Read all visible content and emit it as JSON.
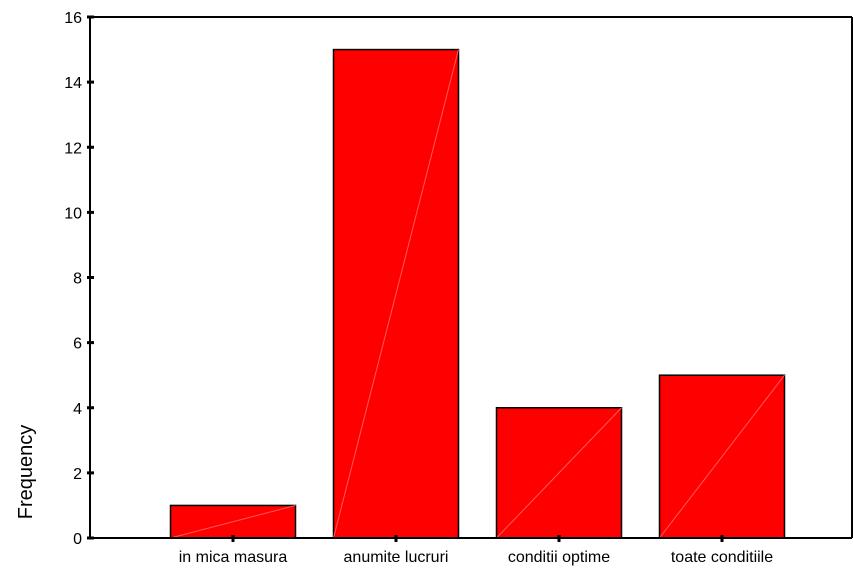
{
  "chart_data": {
    "type": "bar",
    "title": "",
    "xlabel": "",
    "ylabel": "Frequency",
    "categories": [
      "in mica masura",
      "anumite lucruri",
      "conditii optime",
      "toate conditiile"
    ],
    "values": [
      1,
      15,
      4,
      5
    ],
    "ylim": [
      0,
      16
    ],
    "yticks": [
      0,
      2,
      4,
      6,
      8,
      10,
      12,
      14,
      16
    ],
    "grid": false,
    "bar_color": "#ff0000",
    "bar_edge_color": "#000000"
  }
}
